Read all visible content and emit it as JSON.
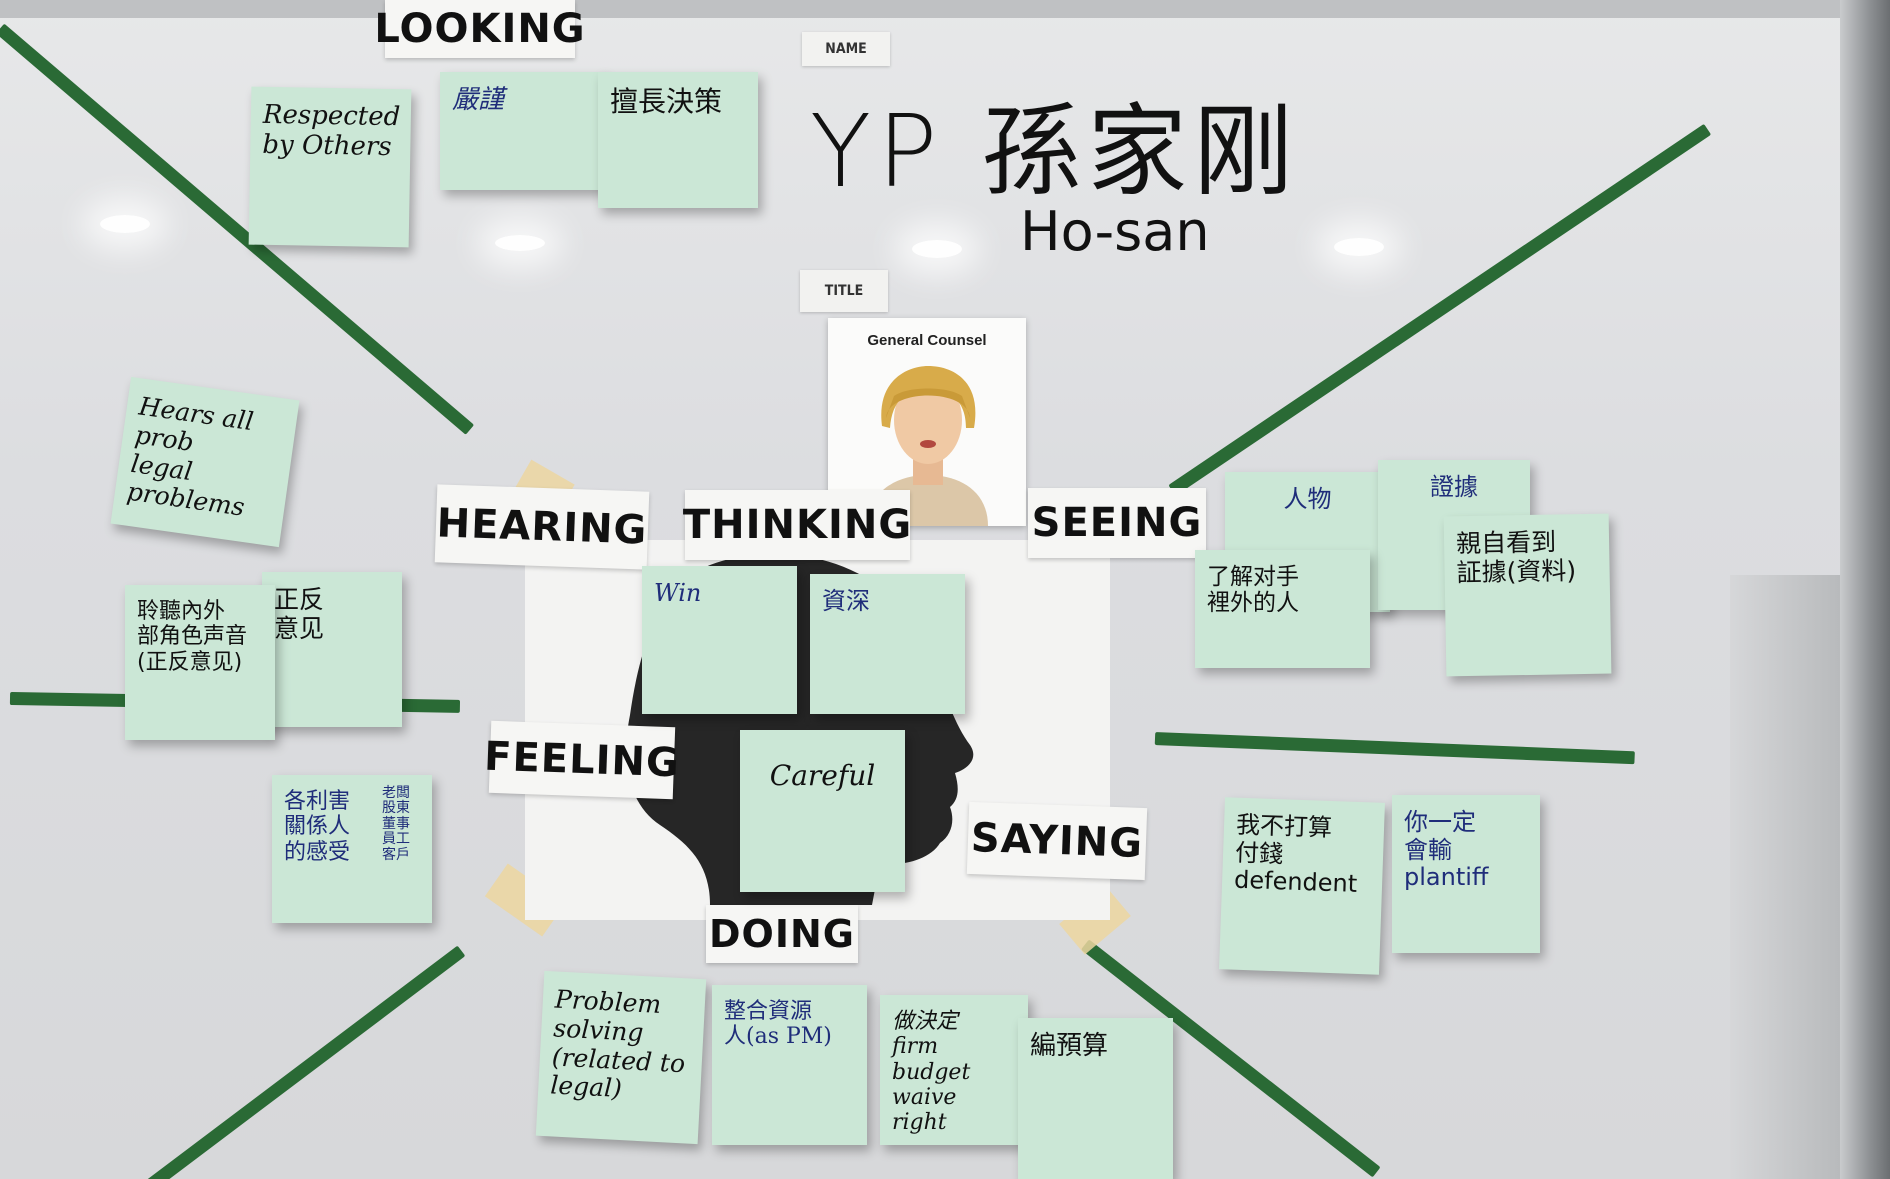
{
  "board": {
    "section_labels": {
      "looking": "LOOKING",
      "hearing": "HEARING",
      "thinking": "THINKING",
      "seeing": "SEEING",
      "feeling": "FEELING",
      "saying": "SAYING",
      "doing": "DOING"
    },
    "tags": {
      "name": "NAME",
      "title": "TITLE"
    },
    "persona": {
      "name_line": "YP 孫家刚",
      "nickname": "Ho-san",
      "title_card": "General Counsel"
    },
    "notes": {
      "looking": [
        "Respected\nby Others",
        "嚴謹",
        "擅長決策"
      ],
      "hearing": [
        "Hears all\nprob\nlegal problems",
        "聆聽內外\n部角色声音\n(正反意见)",
        "正反\n意见",
        "各利害\n關係人\n的感受",
        "老闆\n股東\n董事\n員工\n客戶"
      ],
      "thinking": [
        "Win",
        "資深"
      ],
      "feeling": [
        "Careful"
      ],
      "seeing": [
        "人物",
        "證據",
        "了解对手\n裡外的人",
        "親自看到\n証據(資料)"
      ],
      "saying": [
        "我不打算\n付錢\ndefendent",
        "你一定\n會輸\nplantiff"
      ],
      "doing": [
        "Problem\nsolving\n(related to legal)",
        "整合資源\n人(as PM)",
        "做決定\nfirm budget\nwaive right",
        "編預算"
      ]
    }
  },
  "colors": {
    "sticky": "#cbe7d6",
    "tape": "#2a6a35",
    "board": "#e2e3e5"
  }
}
